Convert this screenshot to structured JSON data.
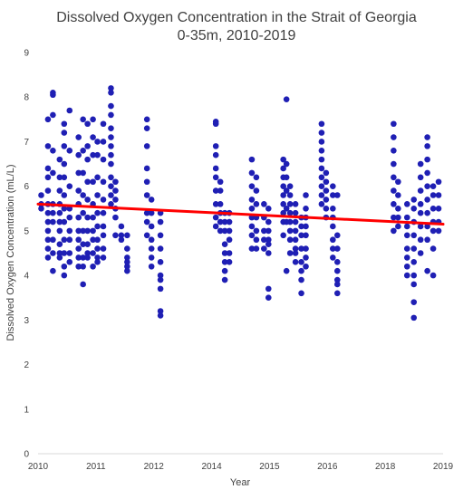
{
  "chart_data": {
    "type": "scatter",
    "title": "Dissolved Oxygen Concentration in the Strait of Georgia",
    "subtitle": "0-35m, 2010-2019",
    "xlabel": "Year",
    "ylabel": "Dissolved Oxygen Concentration (mL/L)",
    "xlim": [
      2010,
      2019
    ],
    "ylim": [
      0,
      9
    ],
    "x_ticks": [
      "2010",
      "2011",
      "2012",
      "2014",
      "2015",
      "2016",
      "2018",
      "2019"
    ],
    "y_ticks": [
      0,
      1,
      2,
      3,
      4,
      5,
      6,
      7,
      8,
      9
    ],
    "grid": "none",
    "legend": "none",
    "point_color": "#1f1fb4",
    "trend_color": "#ff0000",
    "trendline": {
      "x": [
        2010,
        2019
      ],
      "y": [
        5.6,
        5.15
      ]
    },
    "columns": [
      {
        "x": 2010.07,
        "y": [
          5.8,
          5.6,
          5.5
        ]
      },
      {
        "x": 2010.22,
        "y": [
          7.5,
          6.9,
          6.4,
          6.2,
          5.9,
          5.6,
          5.4,
          5.2,
          5.0,
          4.8,
          4.6,
          4.4
        ]
      },
      {
        "x": 2010.33,
        "y": [
          8.1,
          8.05,
          7.6,
          6.8,
          6.3,
          5.6,
          5.4,
          5.2,
          4.8,
          4.5,
          4.1
        ]
      },
      {
        "x": 2010.48,
        "y": [
          6.6,
          6.2,
          5.9,
          5.6,
          5.4,
          5.2,
          5.0,
          4.7,
          4.5,
          4.4
        ]
      },
      {
        "x": 2010.58,
        "y": [
          7.4,
          7.2,
          6.9,
          6.5,
          6.2,
          5.8,
          5.5,
          5.2,
          4.8,
          4.5,
          4.2,
          4.0
        ]
      },
      {
        "x": 2010.7,
        "y": [
          7.7,
          6.8,
          6.0,
          5.5,
          5.3,
          5.0,
          4.8,
          4.5,
          4.3
        ]
      },
      {
        "x": 2010.9,
        "y": [
          7.1,
          6.7,
          6.3,
          5.9,
          5.6,
          5.3,
          5.0,
          4.8,
          4.6,
          4.4,
          4.2
        ]
      },
      {
        "x": 2011.0,
        "y": [
          7.5,
          6.8,
          6.3,
          5.8,
          5.4,
          5.0,
          4.7,
          4.4,
          4.2,
          3.8
        ]
      },
      {
        "x": 2011.1,
        "y": [
          7.4,
          6.9,
          6.6,
          6.1,
          5.7,
          5.3,
          5.0,
          4.7,
          4.5,
          4.4
        ]
      },
      {
        "x": 2011.22,
        "y": [
          7.5,
          7.1,
          6.7,
          6.1,
          5.6,
          5.3,
          5.0,
          4.8,
          4.5,
          4.2
        ]
      },
      {
        "x": 2011.32,
        "y": [
          7.0,
          6.7,
          6.2,
          5.8,
          5.4,
          5.1,
          4.8,
          4.6,
          4.4,
          4.3
        ]
      },
      {
        "x": 2011.45,
        "y": [
          7.4,
          7.0,
          6.6,
          6.1,
          5.7,
          5.4,
          5.1,
          4.9,
          4.6,
          4.4
        ]
      },
      {
        "x": 2011.62,
        "y": [
          8.2,
          8.1,
          7.8,
          7.6,
          7.3,
          7.1,
          6.9,
          6.7,
          6.5,
          6.2,
          6.0,
          5.8,
          5.6
        ]
      },
      {
        "x": 2011.72,
        "y": [
          6.1,
          5.9,
          5.7,
          5.5,
          5.3,
          4.9
        ]
      },
      {
        "x": 2011.85,
        "y": [
          5.1,
          4.9,
          4.8
        ]
      },
      {
        "x": 2011.98,
        "y": [
          4.9,
          4.6,
          4.4,
          4.3,
          4.2,
          4.1
        ]
      },
      {
        "x": 2012.42,
        "y": [
          7.5,
          7.3,
          6.9,
          6.4,
          6.1,
          5.8,
          5.4,
          5.2,
          4.9
        ]
      },
      {
        "x": 2012.52,
        "y": [
          5.7,
          5.4,
          5.1,
          4.8,
          4.6,
          4.4,
          4.2
        ]
      },
      {
        "x": 2012.72,
        "y": [
          5.4,
          5.2,
          4.9,
          4.6,
          4.3,
          4.0,
          3.9,
          3.7,
          3.2,
          3.1
        ]
      },
      {
        "x": 2013.95,
        "y": [
          7.45,
          7.4,
          6.9,
          6.7,
          6.4,
          6.2,
          5.9,
          5.6,
          5.3,
          5.1
        ]
      },
      {
        "x": 2014.05,
        "y": [
          6.1,
          5.9,
          5.6,
          5.4,
          5.2,
          5.0
        ]
      },
      {
        "x": 2014.15,
        "y": [
          5.4,
          5.2,
          5.0,
          4.7,
          4.5,
          4.3,
          4.1,
          3.9
        ]
      },
      {
        "x": 2014.25,
        "y": [
          5.4,
          5.2,
          5.0,
          4.8,
          4.5,
          4.3
        ]
      },
      {
        "x": 2014.75,
        "y": [
          6.6,
          6.3,
          6.0,
          5.7,
          5.5,
          5.3,
          5.1,
          4.9,
          4.6
        ]
      },
      {
        "x": 2014.85,
        "y": [
          6.2,
          5.9,
          5.6,
          5.3,
          5.0,
          4.8,
          4.6
        ]
      },
      {
        "x": 2015.02,
        "y": [
          5.6,
          5.3,
          5.0,
          4.8,
          4.6
        ]
      },
      {
        "x": 2015.12,
        "y": [
          5.5,
          5.2,
          5.0,
          4.8,
          4.7,
          4.5,
          3.7,
          3.5
        ]
      },
      {
        "x": 2015.45,
        "y": [
          6.6,
          6.4,
          6.2,
          6.0,
          5.8,
          5.6,
          5.4,
          5.2,
          4.9
        ]
      },
      {
        "x": 2015.52,
        "y": [
          7.95,
          6.5,
          6.2,
          5.9,
          5.5,
          5.2,
          4.1
        ]
      },
      {
        "x": 2015.6,
        "y": [
          6.0,
          5.8,
          5.6,
          5.4,
          5.2,
          5.0,
          4.8,
          4.5
        ]
      },
      {
        "x": 2015.72,
        "y": [
          5.6,
          5.4,
          5.2,
          5.0,
          4.8,
          4.6,
          4.5,
          4.3
        ]
      },
      {
        "x": 2015.85,
        "y": [
          5.3,
          5.1,
          4.9,
          4.6,
          4.3,
          4.1,
          3.9,
          3.6
        ]
      },
      {
        "x": 2015.95,
        "y": [
          5.8,
          5.5,
          5.3,
          5.1,
          4.9,
          4.6,
          4.4,
          4.2
        ]
      },
      {
        "x": 2016.3,
        "y": [
          7.4,
          7.2,
          7.0,
          6.8,
          6.6,
          6.4,
          6.2,
          6.0,
          5.8,
          5.6
        ]
      },
      {
        "x": 2016.4,
        "y": [
          6.3,
          6.1,
          5.9,
          5.7,
          5.5,
          5.3
        ]
      },
      {
        "x": 2016.55,
        "y": [
          6.0,
          5.8,
          5.5,
          5.3,
          5.1,
          4.8,
          4.6,
          4.4
        ]
      },
      {
        "x": 2016.65,
        "y": [
          5.8,
          4.9,
          4.6,
          4.3,
          4.1,
          3.9,
          3.8,
          3.6
        ]
      },
      {
        "x": 2017.9,
        "y": [
          7.4,
          7.1,
          6.8,
          6.5,
          6.2,
          5.9,
          5.6,
          5.3,
          5.0
        ]
      },
      {
        "x": 2018.0,
        "y": [
          6.1,
          5.8,
          5.5,
          5.3,
          5.1
        ]
      },
      {
        "x": 2018.2,
        "y": [
          5.6,
          5.3,
          5.1,
          4.9,
          4.6,
          4.4,
          4.2,
          4.0
        ]
      },
      {
        "x": 2018.35,
        "y": [
          5.7,
          5.5,
          5.2,
          4.9,
          4.6,
          4.3,
          4.0,
          3.8,
          3.4,
          3.05
        ]
      },
      {
        "x": 2018.5,
        "y": [
          6.5,
          6.2,
          5.9,
          5.6,
          5.4,
          5.1,
          4.8,
          4.5
        ]
      },
      {
        "x": 2018.65,
        "y": [
          7.1,
          6.9,
          6.6,
          6.3,
          6.0,
          5.7,
          5.4,
          5.1,
          4.8,
          4.1
        ]
      },
      {
        "x": 2018.78,
        "y": [
          6.0,
          5.8,
          5.5,
          5.2,
          5.0,
          4.6,
          4.0
        ]
      },
      {
        "x": 2018.9,
        "y": [
          6.1,
          5.8,
          5.5,
          5.2,
          5.0
        ]
      }
    ]
  }
}
